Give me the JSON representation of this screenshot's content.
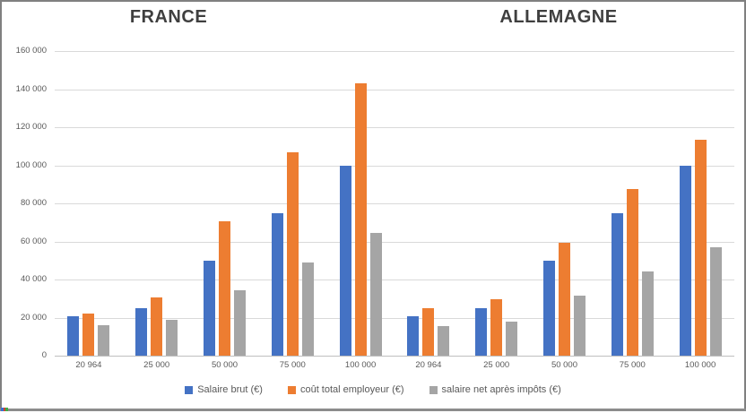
{
  "chart_data": {
    "type": "bar",
    "panels": [
      {
        "label": "FRANCE"
      },
      {
        "label": "ALLEMAGNE"
      }
    ],
    "categories": [
      "20 964",
      "25 000",
      "50 000",
      "75 000",
      "100 000",
      "20 964",
      "25 000",
      "50 000",
      "75 000",
      "100 000"
    ],
    "series": [
      {
        "name": "Salaire brut (€)",
        "color": "#4472c4",
        "values": [
          20964,
          25000,
          50000,
          75000,
          100000,
          20964,
          25000,
          50000,
          75000,
          100000
        ]
      },
      {
        "name": "coût total employeur (€)",
        "color": "#ed7d31",
        "values": [
          22000,
          30400,
          70500,
          107000,
          143000,
          24900,
          29600,
          59300,
          87500,
          113400
        ]
      },
      {
        "name": "salaire net après impôts (€)",
        "color": "#a5a5a5",
        "values": [
          16000,
          19000,
          34400,
          49200,
          64400,
          15500,
          17800,
          31600,
          44300,
          57000
        ]
      }
    ],
    "ylim": [
      0,
      160000
    ],
    "ytick_step": 20000,
    "ytick_labels": [
      "0",
      "20 000",
      "40 000",
      "60 000",
      "80 000",
      "100 000",
      "120 000",
      "140 000",
      "160 000"
    ],
    "grid": true,
    "legend_position": "bottom"
  },
  "style": {
    "grid_color": "#d9d9d9",
    "axis_color": "#bfbfbf",
    "text_color": "#595959",
    "title_color": "#3f3f3f",
    "frame_color": "#808080",
    "artifact_colors": [
      "#3b6fd4",
      "#d0432f",
      "#3faa44"
    ]
  }
}
